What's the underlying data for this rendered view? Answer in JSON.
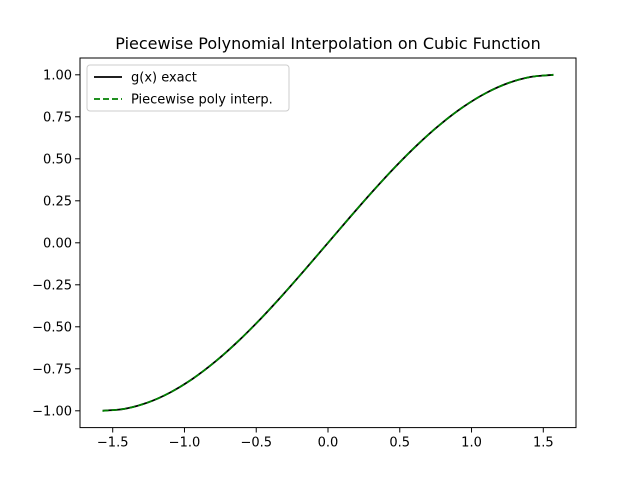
{
  "chart_data": {
    "type": "line",
    "title": "Piecewise Polynomial Interpolation on Cubic Function",
    "xlabel": "",
    "ylabel": "",
    "xlim": [
      -1.727876,
      1.727876
    ],
    "ylim": [
      -1.1,
      1.1
    ],
    "grid": false,
    "legend_position": "upper-left",
    "x_ticks": [
      {
        "value": -1.5,
        "label": "−1.5"
      },
      {
        "value": -1.0,
        "label": "−1.0"
      },
      {
        "value": -0.5,
        "label": "−0.5"
      },
      {
        "value": 0.0,
        "label": "0.0"
      },
      {
        "value": 0.5,
        "label": "0.5"
      },
      {
        "value": 1.0,
        "label": "1.0"
      },
      {
        "value": 1.5,
        "label": "1.5"
      }
    ],
    "y_ticks": [
      {
        "value": -1.0,
        "label": "−1.00"
      },
      {
        "value": -0.75,
        "label": "−0.75"
      },
      {
        "value": -0.5,
        "label": "−0.50"
      },
      {
        "value": -0.25,
        "label": "−0.25"
      },
      {
        "value": 0.0,
        "label": "0.00"
      },
      {
        "value": 0.25,
        "label": "0.25"
      },
      {
        "value": 0.5,
        "label": "0.50"
      },
      {
        "value": 0.75,
        "label": "0.75"
      },
      {
        "value": 1.0,
        "label": "1.00"
      }
    ],
    "x": [
      -1.5708,
      -1.4137,
      -1.2566,
      -1.0996,
      -0.9425,
      -0.7854,
      -0.6283,
      -0.4712,
      -0.3142,
      -0.1571,
      0.0,
      0.1571,
      0.3142,
      0.4712,
      0.6283,
      0.7854,
      0.9425,
      1.0996,
      1.2566,
      1.4137,
      1.5708
    ],
    "series": [
      {
        "name": "g(x) exact",
        "color": "#000000",
        "style": "solid",
        "values": [
          -1.0,
          -0.9877,
          -0.9511,
          -0.891,
          -0.809,
          -0.7071,
          -0.5878,
          -0.454,
          -0.309,
          -0.1564,
          0.0,
          0.1564,
          0.309,
          0.454,
          0.5878,
          0.7071,
          0.809,
          0.891,
          0.9511,
          0.9877,
          1.0
        ]
      },
      {
        "name": "Piecewise poly interp.",
        "color": "#008000",
        "style": "dashed",
        "values": [
          -1.0,
          -0.9877,
          -0.9511,
          -0.891,
          -0.809,
          -0.7071,
          -0.5878,
          -0.454,
          -0.309,
          -0.1564,
          0.0,
          0.1564,
          0.309,
          0.454,
          0.5878,
          0.7071,
          0.809,
          0.891,
          0.9511,
          0.9877,
          1.0
        ]
      }
    ]
  }
}
